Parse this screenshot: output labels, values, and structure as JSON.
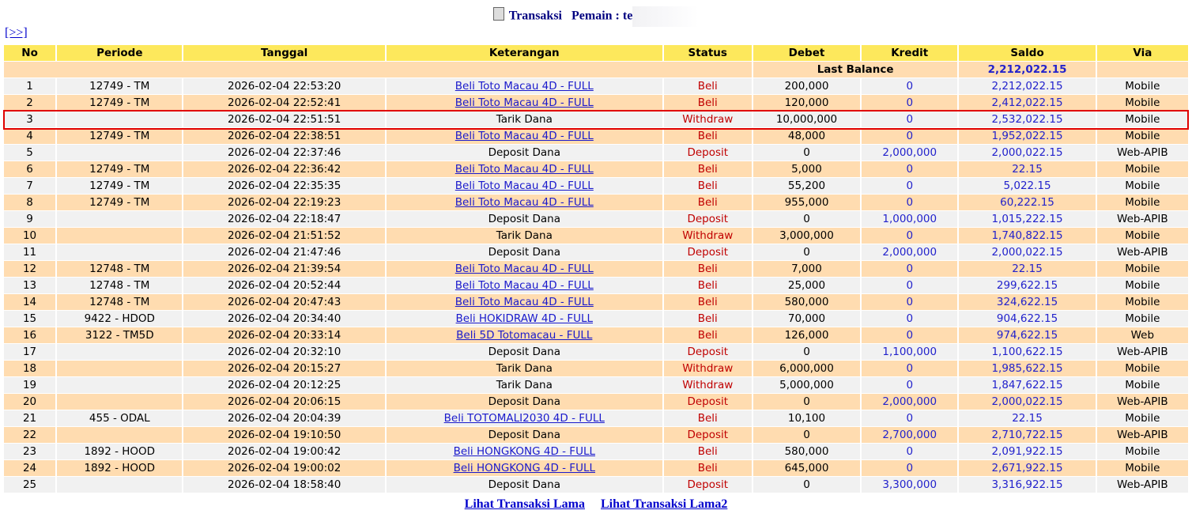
{
  "header": {
    "title": "Transaksi",
    "player_label": "Pemain : te",
    "nav": "[>>]"
  },
  "table": {
    "columns": [
      "No",
      "Periode",
      "Tanggal",
      "Keterangan",
      "Status",
      "Debet",
      "Kredit",
      "Saldo",
      "Via"
    ],
    "last_balance_label": "Last Balance",
    "last_balance": "2,212,022.15",
    "rows": [
      [
        "1",
        "12749 - TM",
        "2026-02-04 22:53:20",
        "Beli Toto Macau 4D - FULL",
        "Beli",
        "200,000",
        "0",
        "2,212,022.15",
        "Mobile"
      ],
      [
        "2",
        "12749 - TM",
        "2026-02-04 22:52:41",
        "Beli Toto Macau 4D - FULL",
        "Beli",
        "120,000",
        "0",
        "2,412,022.15",
        "Mobile"
      ],
      [
        "3",
        null,
        "2026-02-04 22:51:51",
        "Tarik Dana",
        "Withdraw",
        "10,000,000",
        "0",
        "2,532,022.15",
        "Mobile"
      ],
      [
        "4",
        "12749 - TM",
        "2026-02-04 22:38:51",
        "Beli Toto Macau 4D - FULL",
        "Beli",
        "48,000",
        "0",
        "1,952,022.15",
        "Mobile"
      ],
      [
        "5",
        null,
        "2026-02-04 22:37:46",
        "Deposit Dana",
        "Deposit",
        "0",
        "2,000,000",
        "2,000,022.15",
        "Web-APIB"
      ],
      [
        "6",
        "12749 - TM",
        "2026-02-04 22:36:42",
        "Beli Toto Macau 4D - FULL",
        "Beli",
        "5,000",
        "0",
        "22.15",
        "Mobile"
      ],
      [
        "7",
        "12749 - TM",
        "2026-02-04 22:35:35",
        "Beli Toto Macau 4D - FULL",
        "Beli",
        "55,200",
        "0",
        "5,022.15",
        "Mobile"
      ],
      [
        "8",
        "12749 - TM",
        "2026-02-04 22:19:23",
        "Beli Toto Macau 4D - FULL",
        "Beli",
        "955,000",
        "0",
        "60,222.15",
        "Mobile"
      ],
      [
        "9",
        null,
        "2026-02-04 22:18:47",
        "Deposit Dana",
        "Deposit",
        "0",
        "1,000,000",
        "1,015,222.15",
        "Web-APIB"
      ],
      [
        "10",
        null,
        "2026-02-04 21:51:52",
        "Tarik Dana",
        "Withdraw",
        "3,000,000",
        "0",
        "1,740,822.15",
        "Mobile"
      ],
      [
        "11",
        null,
        "2026-02-04 21:47:46",
        "Deposit Dana",
        "Deposit",
        "0",
        "2,000,000",
        "2,000,022.15",
        "Web-APIB"
      ],
      [
        "12",
        "12748 - TM",
        "2026-02-04 21:39:54",
        "Beli Toto Macau 4D - FULL",
        "Beli",
        "7,000",
        "0",
        "22.15",
        "Mobile"
      ],
      [
        "13",
        "12748 - TM",
        "2026-02-04 20:52:44",
        "Beli Toto Macau 4D - FULL",
        "Beli",
        "25,000",
        "0",
        "299,622.15",
        "Mobile"
      ],
      [
        "14",
        "12748 - TM",
        "2026-02-04 20:47:43",
        "Beli Toto Macau 4D - FULL",
        "Beli",
        "580,000",
        "0",
        "324,622.15",
        "Mobile"
      ],
      [
        "15",
        "9422 - HDOD",
        "2026-02-04 20:34:40",
        "Beli HOKIDRAW 4D - FULL",
        "Beli",
        "70,000",
        "0",
        "904,622.15",
        "Mobile"
      ],
      [
        "16",
        "3122 - TM5D",
        "2026-02-04 20:33:14",
        "Beli 5D Totomacau - FULL",
        "Beli",
        "126,000",
        "0",
        "974,622.15",
        "Web"
      ],
      [
        "17",
        null,
        "2026-02-04 20:32:10",
        "Deposit Dana",
        "Deposit",
        "0",
        "1,100,000",
        "1,100,622.15",
        "Web-APIB"
      ],
      [
        "18",
        null,
        "2026-02-04 20:15:27",
        "Tarik Dana",
        "Withdraw",
        "6,000,000",
        "0",
        "1,985,622.15",
        "Mobile"
      ],
      [
        "19",
        null,
        "2026-02-04 20:12:25",
        "Tarik Dana",
        "Withdraw",
        "5,000,000",
        "0",
        "1,847,622.15",
        "Mobile"
      ],
      [
        "20",
        null,
        "2026-02-04 20:06:15",
        "Deposit Dana",
        "Deposit",
        "0",
        "2,000,000",
        "2,000,022.15",
        "Web-APIB"
      ],
      [
        "21",
        "455 - ODAL",
        "2026-02-04 20:04:39",
        "Beli TOTOMALI2030 4D - FULL",
        "Beli",
        "10,100",
        "0",
        "22.15",
        "Mobile"
      ],
      [
        "22",
        null,
        "2026-02-04 19:10:50",
        "Deposit Dana",
        "Deposit",
        "0",
        "2,700,000",
        "2,710,722.15",
        "Web-APIB"
      ],
      [
        "23",
        "1892 - HOOD",
        "2026-02-04 19:00:42",
        "Beli HONGKONG 4D - FULL",
        "Beli",
        "580,000",
        "0",
        "2,091,922.15",
        "Mobile"
      ],
      [
        "24",
        "1892 - HOOD",
        "2026-02-04 19:00:02",
        "Beli HONGKONG 4D - FULL",
        "Beli",
        "645,000",
        "0",
        "2,671,922.15",
        "Mobile"
      ],
      [
        "25",
        null,
        "2026-02-04 18:58:40",
        "Deposit Dana",
        "Deposit",
        "0",
        "3,300,000",
        "3,316,922.15",
        "Web-APIB"
      ]
    ]
  },
  "footer": {
    "links": [
      "Lihat Transaksi Lama",
      "Lihat Transaksi Lama2"
    ]
  }
}
